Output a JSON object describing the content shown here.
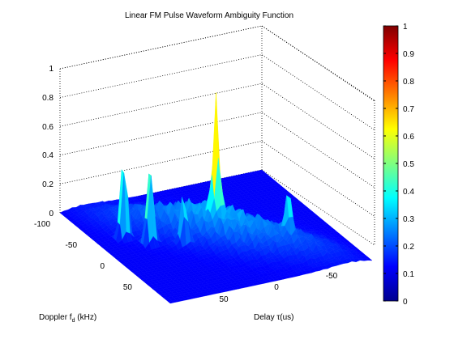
{
  "chart_data": {
    "type": "surface",
    "title": "Linear FM Pulse Waveform Ambiguity Function",
    "xlabel": "Delay  τ(us)",
    "ylabel_prefix": "Doppler f",
    "ylabel_sub": "d",
    "ylabel_suffix": " (kHz)",
    "zlim": [
      0,
      1
    ],
    "z_ticks": [
      "0",
      "0.2",
      "0.4",
      "0.6",
      "0.8",
      "1"
    ],
    "doppler_ticks": [
      "-100",
      "-50",
      "0",
      "50"
    ],
    "delay_ticks": [
      "50",
      "0",
      "-50"
    ],
    "colorbar": {
      "ticks": [
        "0",
        "0.1",
        "0.2",
        "0.3",
        "0.4",
        "0.5",
        "0.6",
        "0.7",
        "0.8",
        "0.9",
        "1"
      ],
      "colormap": "jet",
      "range": [
        0,
        1
      ]
    },
    "peaks": [
      {
        "delay": 0,
        "doppler": 0,
        "z": 0.82
      },
      {
        "delay": 75,
        "doppler": -30,
        "z": 0.62
      },
      {
        "delay": 60,
        "doppler": -10,
        "z": 0.6
      },
      {
        "delay": 35,
        "doppler": 5,
        "z": 0.32
      },
      {
        "delay": -50,
        "doppler": 40,
        "z": 0.28
      }
    ],
    "grid": true
  }
}
